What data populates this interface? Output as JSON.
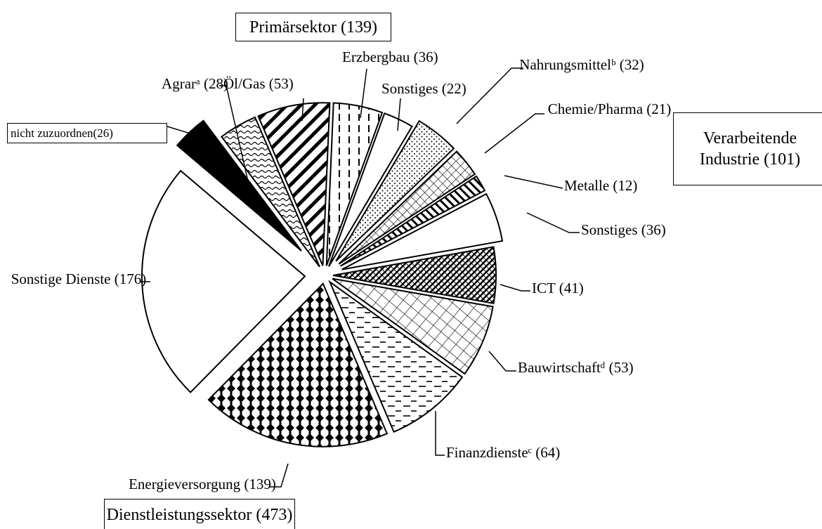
{
  "chart_data": {
    "type": "pie",
    "categories": [
      "Agrarᵃ",
      "Öl/Gas",
      "Erzbergbau",
      "Sonstiges",
      "Nahrungsmittelᵇ",
      "Chemie/Pharma",
      "Metalle",
      "Sonstiges",
      "ICT",
      "Bauwirtschaftᵈ",
      "Finanzdiensteᶜ",
      "Energieversorgung",
      "Sonstige Dienste",
      "nicht zuzuordnen"
    ],
    "values": [
      28,
      53,
      36,
      22,
      32,
      21,
      12,
      36,
      41,
      53,
      64,
      139,
      176,
      26
    ],
    "value_labels": [
      "(28)",
      "(53)",
      "(36)",
      "(22)",
      "(32)",
      "(21)",
      "(12)",
      "(36)",
      "(41)",
      "(53)",
      "(64)",
      "(139)",
      "(176)",
      "(26)"
    ],
    "fills": [
      "wave",
      "diagonal-thick",
      "dashes-vertical",
      "white",
      "dots",
      "crosshatch",
      "diagonal-thin",
      "white",
      "crosshatch-dense",
      "grid-diamond",
      "dashes-horizontal",
      "plus-dense",
      "white",
      "black"
    ],
    "groups": [
      {
        "name": "Primärsektor",
        "value": 139,
        "value_label": "(139)"
      },
      {
        "name": "Verarbeitende Industrie",
        "value": 101,
        "value_label": "(101)"
      },
      {
        "name": "Dienstleistungssektor",
        "value": 473,
        "value_label": "(473)"
      }
    ]
  }
}
